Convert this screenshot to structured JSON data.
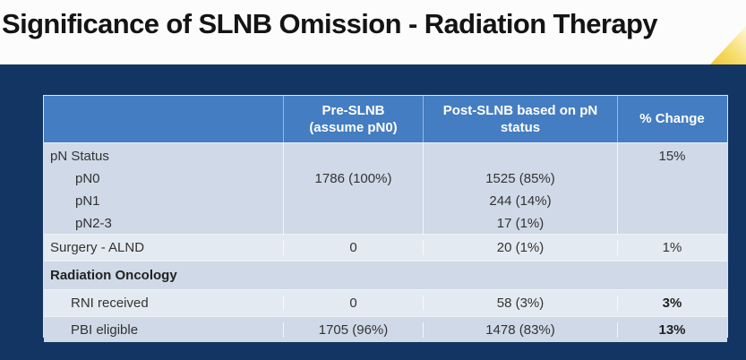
{
  "title": "Significance of SLNB Omission - Radiation Therapy",
  "colors": {
    "slide_background": "#133564",
    "title_band": "#fcfcfc",
    "header_blue": "#447dc1",
    "band_dark": "#cfd9e7",
    "band_light": "#e4eaf1",
    "accent_yellow": "#f1c52f"
  },
  "table": {
    "header": {
      "col1": "",
      "pre": "Pre-SLNB\n(assume pN0)",
      "post": "Post-SLNB based on pN\nstatus",
      "change": "% Change"
    },
    "pn": {
      "label": "pN Status",
      "sub": [
        "pN0",
        "pN1",
        "pN2-3"
      ],
      "pre_value": "1786 (100%)",
      "post": [
        "1525 (85%)",
        "244 (14%)",
        "17 (1%)"
      ],
      "change": "15%"
    },
    "rows": [
      {
        "label": "Surgery - ALND",
        "pre": "0",
        "post": "20 (1%)",
        "change": "1%"
      },
      {
        "label": "Radiation Oncology",
        "pre": "",
        "post": "",
        "change": ""
      },
      {
        "label": "RNI received",
        "pre": "0",
        "post": "58 (3%)",
        "change": "3%"
      },
      {
        "label": "PBI eligible",
        "pre": "1705 (96%)",
        "post": "1478 (83%)",
        "change": "13%"
      }
    ]
  }
}
